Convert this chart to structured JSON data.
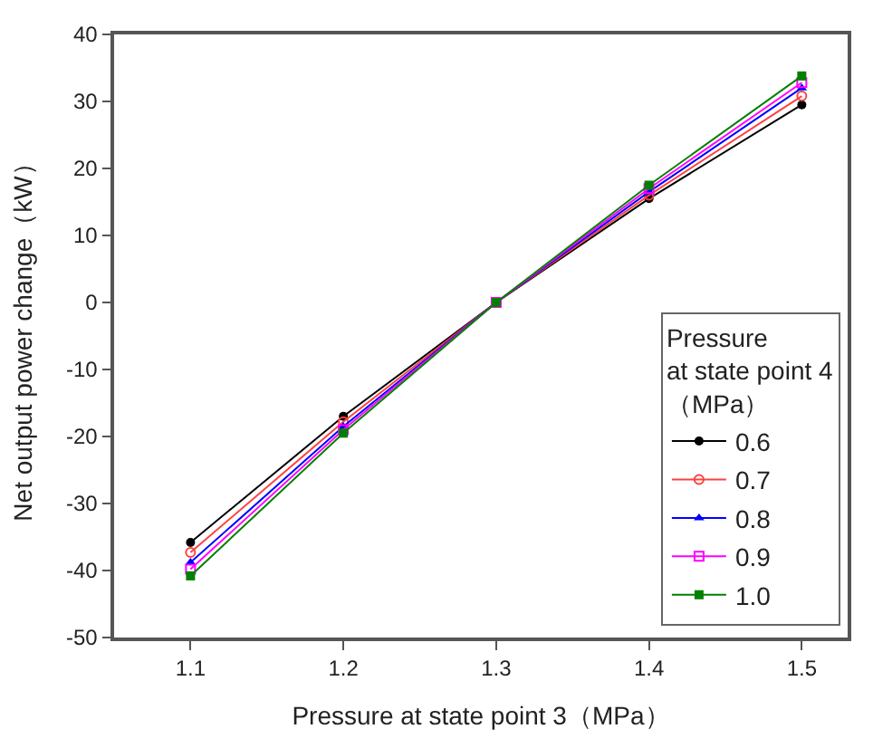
{
  "chart_data": {
    "type": "line",
    "xlabel": "Pressure at state point 3（MPa）",
    "ylabel": "Net output power change（kW）",
    "legend_title": "Pressure\nat state point 4\n（MPa）",
    "x": [
      1.1,
      1.2,
      1.3,
      1.4,
      1.5
    ],
    "xlim": [
      1.05,
      1.53
    ],
    "xticks": [
      1.1,
      1.2,
      1.3,
      1.4,
      1.5
    ],
    "ylim": [
      -50,
      40
    ],
    "yticks": [
      -50,
      -40,
      -30,
      -20,
      -10,
      0,
      10,
      20,
      30,
      40
    ],
    "legend": "bottom right",
    "series": [
      {
        "name": "0.6",
        "color": "#000000",
        "marker": "circle",
        "values": [
          -35.8,
          -17,
          0,
          15.5,
          29.5
        ]
      },
      {
        "name": "0.7",
        "color": "#ff4040",
        "marker": "circle-open",
        "values": [
          -37.3,
          -17.8,
          0,
          16,
          30.8
        ]
      },
      {
        "name": "0.8",
        "color": "#0000ff",
        "marker": "triangle",
        "values": [
          -38.8,
          -18.5,
          0,
          16.5,
          32
        ]
      },
      {
        "name": "0.9",
        "color": "#ff00ff",
        "marker": "square-open",
        "values": [
          -39.8,
          -19,
          0,
          17,
          32.8
        ]
      },
      {
        "name": "1.0",
        "color": "#008000",
        "marker": "square",
        "values": [
          -40.8,
          -19.5,
          0,
          17.5,
          33.8
        ]
      }
    ]
  }
}
